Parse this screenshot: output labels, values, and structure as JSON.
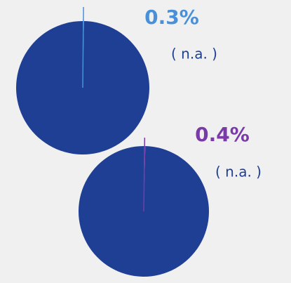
{
  "chart_data": [
    {
      "type": "pie",
      "values": [
        0.3,
        99.7
      ],
      "value_labels": [
        "0.3%",
        null
      ],
      "colors": [
        "#4a90d9",
        "#1f3f95"
      ],
      "annotation": "( n.a. )"
    },
    {
      "type": "pie",
      "values": [
        0.4,
        99.6
      ],
      "value_labels": [
        "0.4%",
        null
      ],
      "colors": [
        "#7a3aa8",
        "#1f3f95"
      ],
      "annotation": "( n.a. )"
    }
  ]
}
